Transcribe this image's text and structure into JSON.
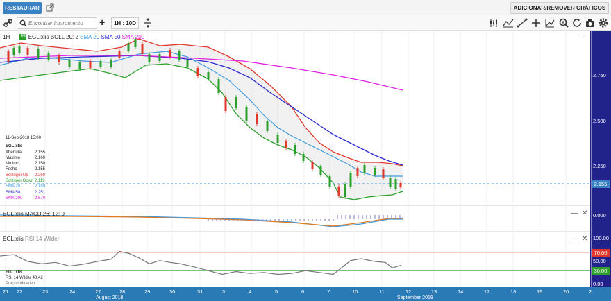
{
  "topbar": {
    "restore_label": "RESTAURAR",
    "add_remove_label": "ADICIONAR/REMOVER GRÁFICOS"
  },
  "toolbar": {
    "search_placeholder": "Encontrar instrumento",
    "interval_label": "1H : 10D",
    "add_label": "+"
  },
  "legend": {
    "period": "1H",
    "symbol": "EGL:xlis",
    "boll": "BOLL 20: 2",
    "sma20": "SMA 20",
    "sma50": "SMA 50",
    "sma200": "SMA 200"
  },
  "ohlc": {
    "date": "11-Sep-2018 15:00",
    "symbol": "EGL:xlis",
    "rows": [
      {
        "k": "Abertura",
        "v": "2.155",
        "color": "#222222"
      },
      {
        "k": "Máximo",
        "v": "2.160",
        "color": "#222222"
      },
      {
        "k": "Mínimo",
        "v": "2.150",
        "color": "#222222"
      },
      {
        "k": "Fecho",
        "v": "2.155",
        "color": "#222222"
      },
      {
        "k": "Bollinger Up",
        "v": "2.260",
        "color": "#e0362b"
      },
      {
        "k": "Bollinger Down",
        "v": "2.119",
        "color": "#2ca02c"
      },
      {
        "k": "SMA 20",
        "v": "2.189",
        "color": "#3d9ae0"
      },
      {
        "k": "SMA 50",
        "v": "2.251",
        "color": "#2a2ad0"
      },
      {
        "k": "SMA 200",
        "v": "2.670",
        "color": "#e020e0"
      }
    ]
  },
  "price_axis": [
    "2.750",
    "2.500",
    "2.250"
  ],
  "last_price": "2.155",
  "macd": {
    "legend": "EGL:xlis  MACD 26: 12: 9",
    "value": "0.000"
  },
  "rsi": {
    "legend_symbol": "EGL:xlis",
    "legend": "RSI 14 Wilder",
    "axis": [
      "100.00",
      "50.00",
      "0.00"
    ],
    "badges": [
      "70.00",
      "30.00"
    ],
    "info_symbol": "EGL:xlis",
    "info_value": "RSI 14 Wilder 40.42",
    "info_note": "Preço indicativo"
  },
  "xaxis": {
    "ticks": [
      "21",
      "22",
      "23",
      "24",
      "27",
      "28",
      "29",
      "30",
      "31",
      "3",
      "4",
      "5",
      "6",
      "7",
      "10",
      "11",
      "12",
      "13",
      "14",
      "17",
      "18",
      "19",
      "20",
      "2"
    ],
    "months": [
      "August 2018",
      "September 2018"
    ]
  },
  "colors": {
    "accent": "#3a82c4",
    "boll_up": "#e0362b",
    "boll_down": "#2ca02c",
    "sma20": "#3d9ae0",
    "sma50": "#2a2ad0",
    "sma200": "#e020e0"
  }
}
